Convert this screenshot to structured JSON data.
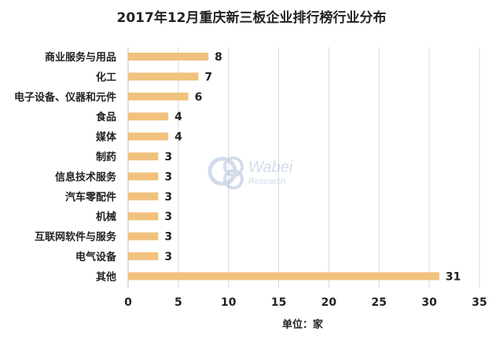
{
  "chart_data": {
    "type": "bar",
    "orientation": "horizontal",
    "title": "2017年12月重庆新三板企业排行榜行业分布",
    "categories": [
      "商业服务与用品",
      "化工",
      "电子设备、仪器和元件",
      "食品",
      "媒体",
      "制药",
      "信息技术服务",
      "汽车零配件",
      "机械",
      "互联网软件与服务",
      "电气设备",
      "其他"
    ],
    "values": [
      8,
      7,
      6,
      4,
      4,
      3,
      3,
      3,
      3,
      3,
      3,
      31
    ],
    "xlim": [
      0,
      35
    ],
    "xticks": [
      0,
      5,
      10,
      15,
      20,
      25,
      30,
      35
    ],
    "xlabel": "单位：家",
    "grid": "vertical",
    "bar_color": "#F1C27D"
  },
  "watermark": {
    "brand": "Wabei",
    "sub": "Research",
    "icon": "wabei-logo-icon"
  }
}
